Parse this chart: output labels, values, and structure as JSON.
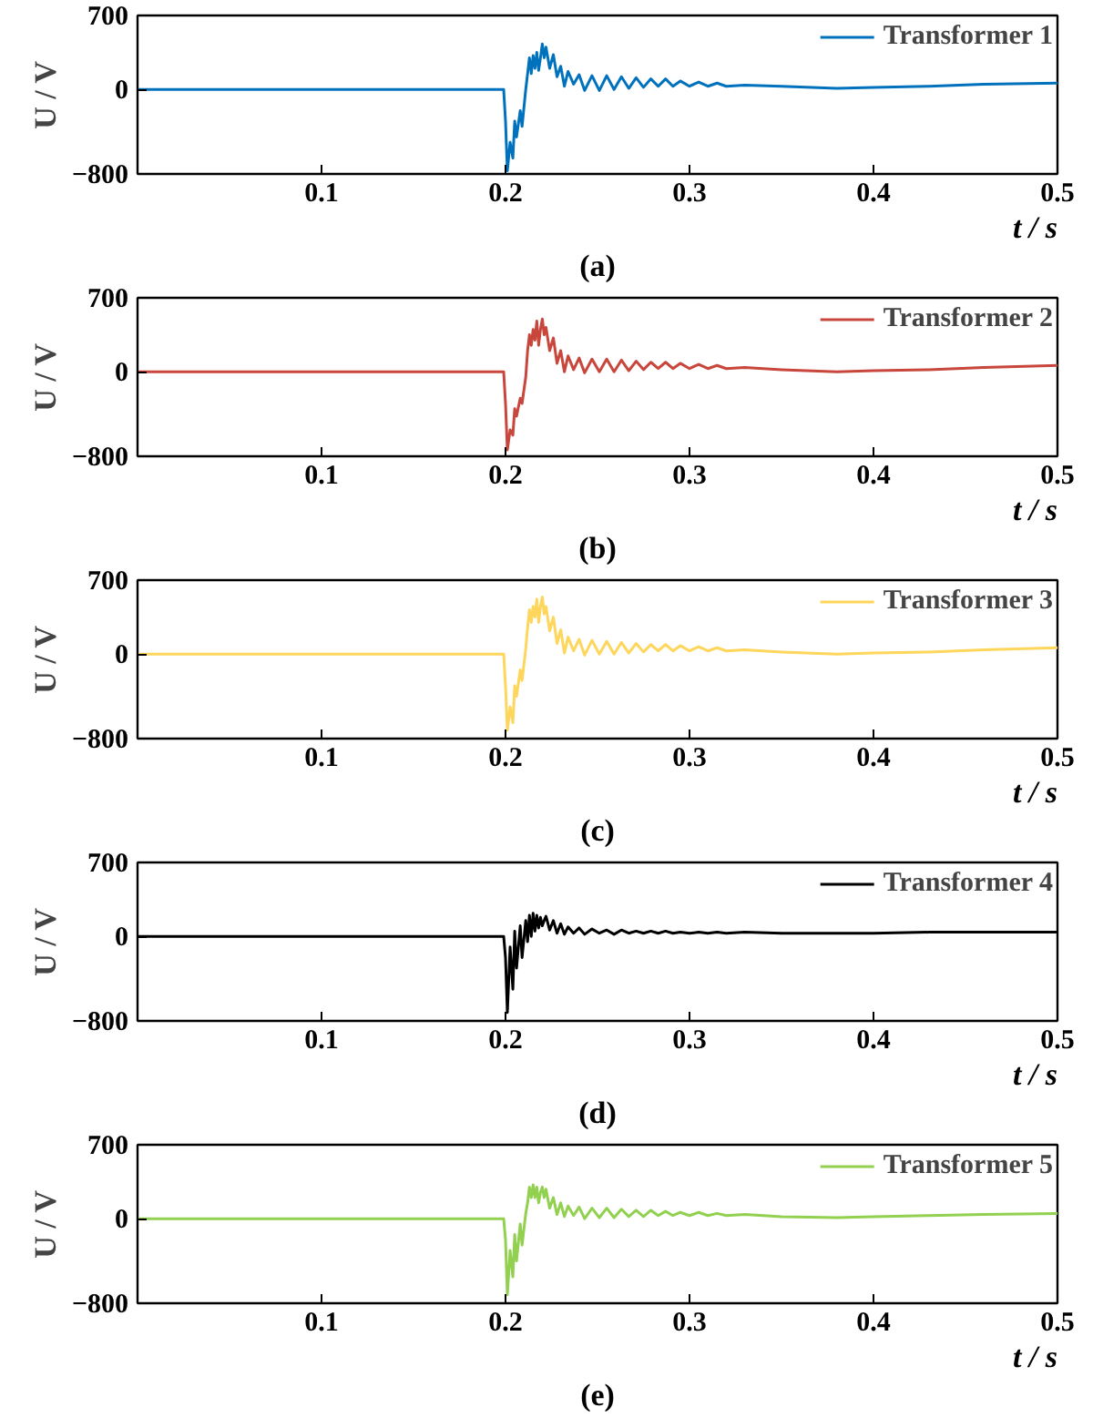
{
  "chart_data": [
    {
      "type": "line",
      "title": "(a)",
      "xlabel": "t / s",
      "ylabel": "U / V",
      "legend": "top right",
      "xlim": [
        0,
        0.5
      ],
      "ylim": [
        -800,
        700
      ],
      "xticks": [
        0.1,
        0.2,
        0.3,
        0.4,
        0.5
      ],
      "yticks": [
        -800,
        0,
        700
      ],
      "x": [
        0,
        0.199,
        0.2,
        0.201,
        0.2025,
        0.204,
        0.205,
        0.206,
        0.208,
        0.209,
        0.211,
        0.212,
        0.213,
        0.214,
        0.215,
        0.216,
        0.217,
        0.218,
        0.219,
        0.22,
        0.221,
        0.222,
        0.224,
        0.226,
        0.228,
        0.23,
        0.232,
        0.234,
        0.237,
        0.24,
        0.243,
        0.247,
        0.251,
        0.255,
        0.259,
        0.263,
        0.267,
        0.271,
        0.275,
        0.279,
        0.283,
        0.287,
        0.291,
        0.295,
        0.3,
        0.305,
        0.31,
        0.315,
        0.32,
        0.33,
        0.35,
        0.38,
        0.4,
        0.43,
        0.46,
        0.5
      ],
      "series": [
        {
          "name": "Transformer 1",
          "color": "#0072bd",
          "values": [
            0,
            0,
            -300,
            -770,
            -500,
            -650,
            -300,
            -450,
            -200,
            -350,
            0,
            150,
            300,
            150,
            320,
            200,
            350,
            180,
            300,
            430,
            300,
            400,
            200,
            330,
            120,
            220,
            30,
            170,
            50,
            140,
            -10,
            130,
            -10,
            130,
            0,
            120,
            10,
            110,
            20,
            100,
            30,
            100,
            30,
            80,
            30,
            70,
            30,
            60,
            30,
            40,
            30,
            10,
            20,
            30,
            50,
            60
          ]
        }
      ]
    },
    {
      "type": "line",
      "title": "(b)",
      "xlabel": "t / s",
      "ylabel": "U / V",
      "legend": "top right",
      "xlim": [
        0,
        0.5
      ],
      "ylim": [
        -800,
        700
      ],
      "xticks": [
        0.1,
        0.2,
        0.3,
        0.4,
        0.5
      ],
      "yticks": [
        -800,
        0,
        700
      ],
      "x": [
        0,
        0.199,
        0.2,
        0.201,
        0.2025,
        0.204,
        0.205,
        0.206,
        0.208,
        0.209,
        0.211,
        0.212,
        0.213,
        0.214,
        0.215,
        0.216,
        0.217,
        0.218,
        0.219,
        0.22,
        0.221,
        0.222,
        0.224,
        0.226,
        0.228,
        0.23,
        0.232,
        0.234,
        0.237,
        0.24,
        0.243,
        0.247,
        0.251,
        0.255,
        0.259,
        0.263,
        0.267,
        0.271,
        0.275,
        0.279,
        0.283,
        0.287,
        0.291,
        0.295,
        0.3,
        0.305,
        0.31,
        0.315,
        0.32,
        0.33,
        0.35,
        0.38,
        0.4,
        0.43,
        0.46,
        0.5
      ],
      "series": [
        {
          "name": "Transformer 2",
          "color": "#c8463c",
          "values": [
            0,
            0,
            -300,
            -740,
            -550,
            -600,
            -350,
            -420,
            -250,
            -300,
            -50,
            200,
            350,
            250,
            400,
            300,
            480,
            250,
            400,
            500,
            350,
            420,
            200,
            320,
            80,
            200,
            0,
            150,
            20,
            130,
            -10,
            120,
            0,
            120,
            0,
            110,
            10,
            100,
            20,
            90,
            30,
            90,
            30,
            80,
            30,
            70,
            30,
            60,
            30,
            40,
            20,
            0,
            10,
            20,
            40,
            60
          ]
        }
      ]
    },
    {
      "type": "line",
      "title": "(c)",
      "xlabel": "t / s",
      "ylabel": "U / V",
      "legend": "top right",
      "xlim": [
        0,
        0.5
      ],
      "ylim": [
        -800,
        700
      ],
      "xticks": [
        0.1,
        0.2,
        0.3,
        0.4,
        0.5
      ],
      "yticks": [
        -800,
        0,
        700
      ],
      "x": [
        0,
        0.199,
        0.2,
        0.201,
        0.2025,
        0.204,
        0.205,
        0.206,
        0.208,
        0.209,
        0.211,
        0.212,
        0.213,
        0.214,
        0.215,
        0.216,
        0.217,
        0.218,
        0.219,
        0.22,
        0.221,
        0.222,
        0.224,
        0.226,
        0.228,
        0.23,
        0.232,
        0.234,
        0.237,
        0.24,
        0.243,
        0.247,
        0.251,
        0.255,
        0.259,
        0.263,
        0.267,
        0.271,
        0.275,
        0.279,
        0.283,
        0.287,
        0.291,
        0.295,
        0.3,
        0.305,
        0.31,
        0.315,
        0.32,
        0.33,
        0.35,
        0.38,
        0.4,
        0.43,
        0.46,
        0.5
      ],
      "series": [
        {
          "name": "Transformer 3",
          "color": "#fdd65b",
          "values": [
            0,
            0,
            -300,
            -720,
            -500,
            -650,
            -300,
            -400,
            -150,
            -250,
            50,
            250,
            420,
            300,
            450,
            350,
            520,
            300,
            450,
            540,
            380,
            450,
            220,
            350,
            100,
            230,
            10,
            160,
            30,
            140,
            -10,
            130,
            0,
            120,
            0,
            110,
            10,
            100,
            20,
            90,
            30,
            90,
            30,
            80,
            30,
            70,
            30,
            60,
            30,
            40,
            20,
            0,
            10,
            20,
            40,
            60
          ]
        }
      ]
    },
    {
      "type": "line",
      "title": "(d)",
      "xlabel": "t / s",
      "ylabel": "U / V",
      "legend": "top right",
      "xlim": [
        0,
        0.5
      ],
      "ylim": [
        -800,
        700
      ],
      "xticks": [
        0.1,
        0.2,
        0.3,
        0.4,
        0.5
      ],
      "yticks": [
        -800,
        0,
        700
      ],
      "x": [
        0,
        0.199,
        0.2,
        0.201,
        0.2025,
        0.204,
        0.205,
        0.206,
        0.208,
        0.209,
        0.211,
        0.212,
        0.213,
        0.214,
        0.215,
        0.216,
        0.217,
        0.218,
        0.219,
        0.22,
        0.221,
        0.222,
        0.224,
        0.226,
        0.228,
        0.23,
        0.232,
        0.234,
        0.237,
        0.24,
        0.243,
        0.247,
        0.251,
        0.255,
        0.259,
        0.263,
        0.267,
        0.271,
        0.275,
        0.279,
        0.283,
        0.287,
        0.291,
        0.295,
        0.3,
        0.305,
        0.31,
        0.315,
        0.32,
        0.33,
        0.35,
        0.38,
        0.4,
        0.43,
        0.46,
        0.5
      ],
      "series": [
        {
          "name": "Transformer 4",
          "color": "#000000",
          "values": [
            0,
            0,
            -200,
            -720,
            -100,
            -500,
            50,
            -300,
            100,
            -200,
            150,
            -50,
            200,
            0,
            220,
            50,
            200,
            80,
            180,
            100,
            150,
            190,
            60,
            150,
            30,
            120,
            20,
            90,
            30,
            80,
            20,
            70,
            30,
            60,
            20,
            60,
            30,
            50,
            30,
            50,
            30,
            50,
            30,
            40,
            30,
            40,
            30,
            40,
            30,
            40,
            30,
            30,
            30,
            40,
            40,
            40
          ]
        }
      ]
    },
    {
      "type": "line",
      "title": "(e)",
      "xlabel": "t / s",
      "ylabel": "U / V",
      "legend": "top right",
      "xlim": [
        0,
        0.5
      ],
      "ylim": [
        -800,
        700
      ],
      "xticks": [
        0.1,
        0.2,
        0.3,
        0.4,
        0.5
      ],
      "yticks": [
        -800,
        0,
        700
      ],
      "x": [
        0,
        0.199,
        0.2,
        0.201,
        0.2025,
        0.204,
        0.205,
        0.206,
        0.208,
        0.209,
        0.211,
        0.212,
        0.213,
        0.214,
        0.215,
        0.216,
        0.217,
        0.218,
        0.219,
        0.22,
        0.221,
        0.222,
        0.224,
        0.226,
        0.228,
        0.23,
        0.232,
        0.234,
        0.237,
        0.24,
        0.243,
        0.247,
        0.251,
        0.255,
        0.259,
        0.263,
        0.267,
        0.271,
        0.275,
        0.279,
        0.283,
        0.287,
        0.291,
        0.295,
        0.3,
        0.305,
        0.31,
        0.315,
        0.32,
        0.33,
        0.35,
        0.38,
        0.4,
        0.43,
        0.46,
        0.5
      ],
      "series": [
        {
          "name": "Transformer 5",
          "color": "#92d050",
          "values": [
            0,
            0,
            -200,
            -720,
            -300,
            -550,
            -150,
            -400,
            -50,
            -250,
            50,
            150,
            300,
            200,
            320,
            200,
            300,
            150,
            250,
            300,
            200,
            280,
            100,
            200,
            40,
            150,
            20,
            120,
            30,
            110,
            0,
            100,
            10,
            100,
            10,
            90,
            20,
            80,
            20,
            80,
            30,
            70,
            30,
            60,
            30,
            60,
            30,
            50,
            30,
            40,
            20,
            10,
            20,
            30,
            40,
            50
          ]
        }
      ]
    }
  ]
}
